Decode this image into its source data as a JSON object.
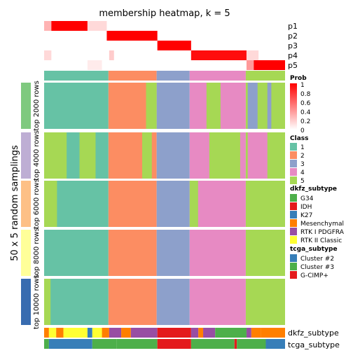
{
  "chart_data": {
    "type": "heatmap",
    "title": "membership heatmap, k = 5",
    "y_axis_label": "50 x 5 random samplings",
    "membership_rows": [
      "p1",
      "p2",
      "p3",
      "p4",
      "p5"
    ],
    "membership_legend": {
      "title": "Prob",
      "ticks": [
        "1",
        "0.8",
        "0.6",
        "0.4",
        "0.2",
        "0"
      ],
      "low_color": "#ffffff",
      "high_color": "#ff0000"
    },
    "column_class_blocks": [
      {
        "cls": 1,
        "frac": 0.267
      },
      {
        "cls": 2,
        "frac": 0.2
      },
      {
        "cls": 3,
        "frac": 0.137
      },
      {
        "cls": 4,
        "frac": 0.233
      },
      {
        "cls": 5,
        "frac": 0.163
      }
    ],
    "class_legend": {
      "title": "Class",
      "items": [
        {
          "label": "1",
          "color": "#66c2a5"
        },
        {
          "label": "2",
          "color": "#fc8d62"
        },
        {
          "label": "3",
          "color": "#8da0cb"
        },
        {
          "label": "4",
          "color": "#e78ac3"
        },
        {
          "label": "5",
          "color": "#a6d854"
        }
      ]
    },
    "panels": [
      {
        "label": "top 2000 rows",
        "color": "#7fc97f"
      },
      {
        "label": "top 4000 rows",
        "color": "#beaed4"
      },
      {
        "label": "top 6000 rows",
        "color": "#fdc086"
      },
      {
        "label": "top 8000 rows",
        "color": "#ffff99"
      },
      {
        "label": "top 10000 rows",
        "color": "#386cb0"
      }
    ],
    "bottom_annotations": [
      "dkfz_subtype",
      "tcga_subtype"
    ],
    "dkfz_legend": {
      "title": "dkfz_subtype",
      "items": [
        {
          "label": "G34",
          "color": "#4daf4a"
        },
        {
          "label": "IDH",
          "color": "#e41a1c"
        },
        {
          "label": "K27",
          "color": "#377eb8"
        },
        {
          "label": "Mesenchymal",
          "color": "#ff7f00"
        },
        {
          "label": "RTK I PDGFRA",
          "color": "#984ea3"
        },
        {
          "label": "RTK II Classic",
          "color": "#ffff33"
        }
      ]
    },
    "tcga_legend": {
      "title": "tcga_subtype",
      "items": [
        {
          "label": "Cluster #2",
          "color": "#377eb8"
        },
        {
          "label": "Cluster #3",
          "color": "#4daf4a"
        },
        {
          "label": "G-CIMP+",
          "color": "#e41a1c"
        }
      ]
    }
  }
}
